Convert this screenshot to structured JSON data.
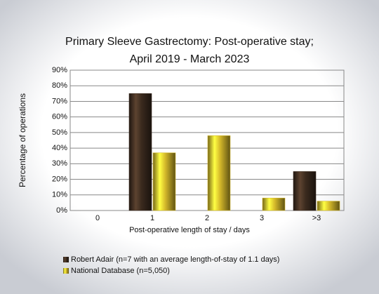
{
  "chart_data": {
    "type": "bar",
    "title": [
      "Primary Sleeve Gastrectomy: Post-operative stay;",
      "April 2019 - March 2023"
    ],
    "xlabel": "Post-operative length of stay / days",
    "ylabel": "Percentage of operations",
    "categories": [
      "0",
      "1",
      "2",
      "3",
      ">3"
    ],
    "series": [
      {
        "name": "Robert Adair (n=7 with an average length-of-stay of 1.1 days)",
        "color": "#3a2a1e",
        "values": [
          0,
          75,
          0,
          0,
          25
        ]
      },
      {
        "name": "National Database (n=5,050)",
        "color": "#d4b82a",
        "values": [
          0,
          37,
          48,
          8,
          6
        ]
      }
    ],
    "ylim": [
      0,
      90
    ],
    "yticks": [
      {
        "value": 0,
        "label": "0%"
      },
      {
        "value": 10,
        "label": "10%"
      },
      {
        "value": 20,
        "label": "20%"
      },
      {
        "value": 30,
        "label": "30%"
      },
      {
        "value": 40,
        "label": "40%"
      },
      {
        "value": 50,
        "label": "50%"
      },
      {
        "value": 60,
        "label": "60%"
      },
      {
        "value": 70,
        "label": "70%"
      },
      {
        "value": 80,
        "label": "80%"
      },
      {
        "value": 90,
        "label": "90%"
      }
    ],
    "grid": true
  }
}
